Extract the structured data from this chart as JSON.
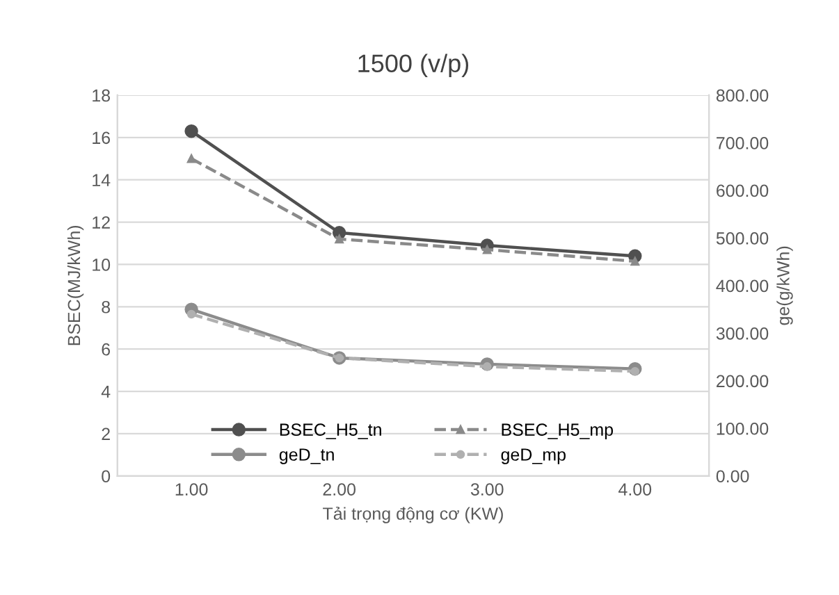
{
  "chart_data": {
    "type": "line",
    "title": "1500 (v/p)",
    "xlabel": "Tải trọng động cơ (KW)",
    "ylabel": "BSEC(MJ/kWh)",
    "y2label": "ge(g/kWh)",
    "categories": [
      "1.00",
      "2.00",
      "3.00",
      "4.00"
    ],
    "series": [
      {
        "name": "BSEC_H5_tn",
        "color": "#505050",
        "values": [
          16.3,
          11.5,
          10.9,
          10.4
        ],
        "marker": "circle",
        "line_style": "solid"
      },
      {
        "name": "BSEC_H5_mp",
        "color": "#8a8a8a",
        "values": [
          15.0,
          11.2,
          10.7,
          10.15
        ],
        "marker": "triangle",
        "line_style": "dashed"
      },
      {
        "name": "geD_tn",
        "color": "#8c8c8c",
        "values": [
          350,
          248,
          235,
          225
        ],
        "marker": "circle",
        "line_style": "solid",
        "axis": "y2"
      },
      {
        "name": "geD_mp",
        "color": "#b0b0b0",
        "values": [
          340,
          248,
          230,
          220
        ],
        "marker": "circle",
        "line_style": "dashed",
        "axis": "y2"
      }
    ],
    "ylim": [
      0,
      18
    ],
    "yticks": [
      0,
      2,
      4,
      6,
      8,
      10,
      12,
      14,
      16,
      18
    ],
    "y2lim": [
      0,
      800
    ],
    "y2ticks": [
      {
        "value": 0,
        "label": "0.00"
      },
      {
        "value": 100,
        "label": "100.00"
      },
      {
        "value": 200,
        "label": "200.00"
      },
      {
        "value": 300,
        "label": "300.00"
      },
      {
        "value": 400,
        "label": "400.00"
      },
      {
        "value": 500,
        "label": "500.00"
      },
      {
        "value": 600,
        "label": "600.00"
      },
      {
        "value": 700,
        "label": "700.00"
      },
      {
        "value": 800,
        "label": "800.00"
      }
    ],
    "grid": "y",
    "legend": "bottom"
  }
}
